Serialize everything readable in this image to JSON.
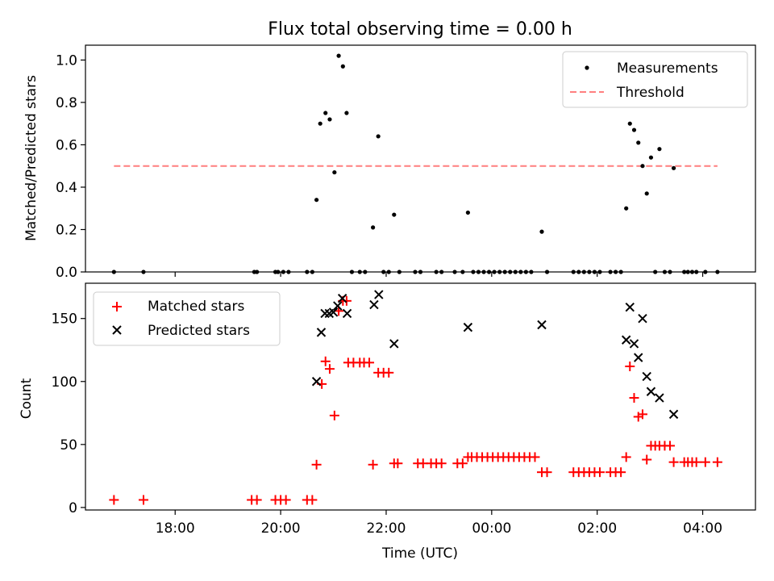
{
  "chart_data": {
    "title": "Flux total observing time = 0.00 h",
    "x_units": "hours since 16:00 UTC",
    "xlabel": "Time (UTC)",
    "xlim": [
      0.3,
      13.0
    ],
    "xticks": [
      {
        "v": 2,
        "label": "18:00"
      },
      {
        "v": 4,
        "label": "20:00"
      },
      {
        "v": 6,
        "label": "22:00"
      },
      {
        "v": 8,
        "label": "00:00"
      },
      {
        "v": 10,
        "label": "02:00"
      },
      {
        "v": 12,
        "label": "04:00"
      }
    ],
    "top": {
      "type": "scatter",
      "ylabel": "Matched/Predicted stars",
      "ylim": [
        0,
        1.07
      ],
      "yticks": [
        {
          "v": 0.0,
          "label": "0.0"
        },
        {
          "v": 0.2,
          "label": "0.2"
        },
        {
          "v": 0.4,
          "label": "0.4"
        },
        {
          "v": 0.6,
          "label": "0.6"
        },
        {
          "v": 0.8,
          "label": "0.8"
        },
        {
          "v": 1.0,
          "label": "1.0"
        }
      ],
      "threshold": {
        "value": 0.5,
        "x_range": [
          0.84,
          12.28
        ],
        "color": "#ff7f7f"
      },
      "measurements": {
        "color": "#000000",
        "points": [
          [
            0.84,
            0
          ],
          [
            1.4,
            0
          ],
          [
            3.5,
            0
          ],
          [
            3.55,
            0
          ],
          [
            3.9,
            0
          ],
          [
            3.95,
            0
          ],
          [
            4.05,
            0
          ],
          [
            4.15,
            0
          ],
          [
            4.5,
            0
          ],
          [
            4.6,
            0
          ],
          [
            4.68,
            0.34
          ],
          [
            4.75,
            0.7
          ],
          [
            4.85,
            0.75
          ],
          [
            4.93,
            0.72
          ],
          [
            5.02,
            0.47
          ],
          [
            5.1,
            1.02
          ],
          [
            5.18,
            0.97
          ],
          [
            5.25,
            0.75
          ],
          [
            5.35,
            0
          ],
          [
            5.5,
            0
          ],
          [
            5.6,
            0
          ],
          [
            5.75,
            0.21
          ],
          [
            5.85,
            0.64
          ],
          [
            5.95,
            0
          ],
          [
            6.05,
            0
          ],
          [
            6.15,
            0.27
          ],
          [
            6.25,
            0
          ],
          [
            6.55,
            0
          ],
          [
            6.65,
            0
          ],
          [
            6.95,
            0
          ],
          [
            7.05,
            0
          ],
          [
            7.3,
            0
          ],
          [
            7.45,
            0
          ],
          [
            7.55,
            0.28
          ],
          [
            7.65,
            0
          ],
          [
            7.75,
            0
          ],
          [
            7.85,
            0
          ],
          [
            7.95,
            0
          ],
          [
            8.05,
            0
          ],
          [
            8.15,
            0
          ],
          [
            8.25,
            0
          ],
          [
            8.35,
            0
          ],
          [
            8.45,
            0
          ],
          [
            8.55,
            0
          ],
          [
            8.65,
            0
          ],
          [
            8.75,
            0
          ],
          [
            8.95,
            0.19
          ],
          [
            9.05,
            0
          ],
          [
            9.55,
            0
          ],
          [
            9.65,
            0
          ],
          [
            9.75,
            0
          ],
          [
            9.85,
            0
          ],
          [
            9.95,
            0
          ],
          [
            10.05,
            0
          ],
          [
            10.25,
            0
          ],
          [
            10.35,
            0
          ],
          [
            10.45,
            0
          ],
          [
            10.55,
            0.3
          ],
          [
            10.62,
            0.7
          ],
          [
            10.7,
            0.67
          ],
          [
            10.78,
            0.61
          ],
          [
            10.86,
            0.5
          ],
          [
            10.94,
            0.37
          ],
          [
            11.02,
            0.54
          ],
          [
            11.1,
            0
          ],
          [
            11.18,
            0.58
          ],
          [
            11.28,
            0
          ],
          [
            11.38,
            0
          ],
          [
            11.45,
            0.49
          ],
          [
            11.65,
            0
          ],
          [
            11.72,
            0
          ],
          [
            11.8,
            0
          ],
          [
            11.88,
            0
          ],
          [
            12.05,
            0
          ],
          [
            12.28,
            0
          ]
        ]
      },
      "legend": [
        {
          "label": "Measurements",
          "symbol": "dot"
        },
        {
          "label": "Threshold",
          "symbol": "dashed-line"
        }
      ]
    },
    "bottom": {
      "type": "scatter",
      "ylabel": "Count",
      "ylim": [
        -2,
        178
      ],
      "yticks": [
        {
          "v": 0,
          "label": "0"
        },
        {
          "v": 50,
          "label": "50"
        },
        {
          "v": 100,
          "label": "100"
        },
        {
          "v": 150,
          "label": "150"
        }
      ],
      "matched": {
        "name": "Matched stars",
        "color": "#ff0000",
        "points": [
          [
            0.84,
            6
          ],
          [
            1.4,
            6
          ],
          [
            3.45,
            6
          ],
          [
            3.55,
            6
          ],
          [
            3.9,
            6
          ],
          [
            4.0,
            6
          ],
          [
            4.1,
            6
          ],
          [
            4.5,
            6
          ],
          [
            4.6,
            6
          ],
          [
            4.68,
            34
          ],
          [
            4.78,
            98
          ],
          [
            4.85,
            116
          ],
          [
            4.93,
            110
          ],
          [
            5.02,
            73
          ],
          [
            5.1,
            156
          ],
          [
            5.18,
            164
          ],
          [
            5.25,
            164
          ],
          [
            5.28,
            115
          ],
          [
            5.38,
            115
          ],
          [
            5.5,
            115
          ],
          [
            5.58,
            115
          ],
          [
            5.68,
            115
          ],
          [
            5.75,
            34
          ],
          [
            5.85,
            107
          ],
          [
            5.95,
            107
          ],
          [
            6.05,
            107
          ],
          [
            6.15,
            35
          ],
          [
            6.22,
            35
          ],
          [
            6.6,
            35
          ],
          [
            6.7,
            35
          ],
          [
            6.85,
            35
          ],
          [
            6.95,
            35
          ],
          [
            7.05,
            35
          ],
          [
            7.35,
            35
          ],
          [
            7.45,
            35
          ],
          [
            7.55,
            40
          ],
          [
            7.62,
            40
          ],
          [
            7.72,
            40
          ],
          [
            7.82,
            40
          ],
          [
            7.92,
            40
          ],
          [
            8.02,
            40
          ],
          [
            8.12,
            40
          ],
          [
            8.22,
            40
          ],
          [
            8.32,
            40
          ],
          [
            8.42,
            40
          ],
          [
            8.52,
            40
          ],
          [
            8.62,
            40
          ],
          [
            8.72,
            40
          ],
          [
            8.82,
            40
          ],
          [
            8.95,
            28
          ],
          [
            9.05,
            28
          ],
          [
            9.55,
            28
          ],
          [
            9.65,
            28
          ],
          [
            9.75,
            28
          ],
          [
            9.85,
            28
          ],
          [
            9.95,
            28
          ],
          [
            10.05,
            28
          ],
          [
            10.25,
            28
          ],
          [
            10.35,
            28
          ],
          [
            10.45,
            28
          ],
          [
            10.55,
            40
          ],
          [
            10.62,
            112
          ],
          [
            10.7,
            87
          ],
          [
            10.78,
            72
          ],
          [
            10.86,
            74
          ],
          [
            10.94,
            38
          ],
          [
            11.02,
            49
          ],
          [
            11.1,
            49
          ],
          [
            11.18,
            49
          ],
          [
            11.28,
            49
          ],
          [
            11.38,
            49
          ],
          [
            11.45,
            36
          ],
          [
            11.65,
            36
          ],
          [
            11.72,
            36
          ],
          [
            11.8,
            36
          ],
          [
            11.88,
            36
          ],
          [
            12.05,
            36
          ],
          [
            12.28,
            36
          ]
        ]
      },
      "predicted": {
        "name": "Predicted stars",
        "color": "#000000",
        "points": [
          [
            4.68,
            100
          ],
          [
            4.77,
            139
          ],
          [
            4.84,
            154
          ],
          [
            4.92,
            154
          ],
          [
            5.0,
            155
          ],
          [
            5.08,
            160
          ],
          [
            5.17,
            166
          ],
          [
            5.26,
            154
          ],
          [
            5.77,
            161
          ],
          [
            5.86,
            169
          ],
          [
            6.15,
            130
          ],
          [
            7.55,
            143
          ],
          [
            8.95,
            145
          ],
          [
            10.55,
            133
          ],
          [
            10.62,
            159
          ],
          [
            10.7,
            130
          ],
          [
            10.78,
            119
          ],
          [
            10.86,
            150
          ],
          [
            10.94,
            104
          ],
          [
            11.02,
            92
          ],
          [
            11.18,
            87
          ],
          [
            11.45,
            74
          ]
        ]
      },
      "legend": [
        {
          "label": "Matched stars",
          "symbol": "plus"
        },
        {
          "label": "Predicted stars",
          "symbol": "x"
        }
      ]
    }
  }
}
